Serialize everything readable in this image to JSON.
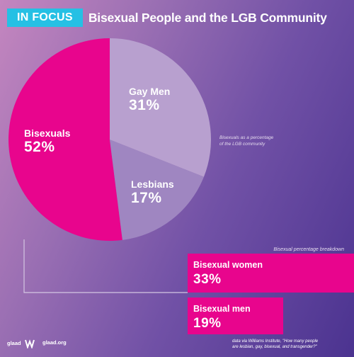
{
  "header": {
    "badge": "IN FOCUS",
    "title": "Bisexual People and the LGB Community"
  },
  "chart_data": [
    {
      "type": "pie",
      "title": "",
      "slices": [
        {
          "label": "Gay Men",
          "pct": "31%",
          "value": 31,
          "color": "#b8a0cf"
        },
        {
          "label": "Lesbians",
          "pct": "17%",
          "value": 17,
          "color": "#9f86c1"
        },
        {
          "label": "Bisexuals",
          "pct": "52%",
          "value": 52,
          "color": "#e8058d"
        }
      ],
      "note": [
        "Bisexuals as a percentage",
        "of the LGB community"
      ]
    },
    {
      "type": "bar",
      "title": "Bisexual percentage breakdown",
      "categories": [
        "Bisexual women",
        "Bisexual men"
      ],
      "values": [
        33,
        19
      ],
      "labels": [
        "33%",
        "19%"
      ],
      "color": "#e8058d"
    }
  ],
  "footer": {
    "logo_text": "glaad",
    "url": "glaad.org",
    "credit": [
      "data via Williams Institute, \"How many people",
      "are lesbian, gay, bisexual, and transgender?\""
    ]
  }
}
